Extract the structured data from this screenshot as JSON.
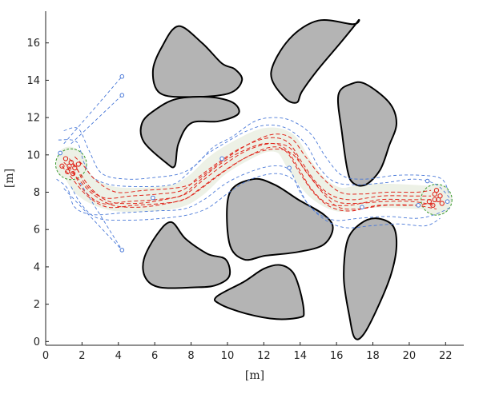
{
  "chart_data": {
    "type": "line",
    "title": "",
    "xlabel": "[m]",
    "ylabel": "[m]",
    "xlim": [
      0,
      23
    ],
    "ylim": [
      -0.2,
      17.7
    ],
    "x_ticks": [
      0,
      2,
      4,
      6,
      8,
      10,
      12,
      14,
      16,
      18,
      20,
      22
    ],
    "y_ticks": [
      0,
      2,
      4,
      6,
      8,
      10,
      12,
      14,
      16
    ],
    "grid": false,
    "legend": "none",
    "colors": {
      "obstacle_fill": "#b4b4b4",
      "obstacle_edge": "#000000",
      "corridor": "#edf1e6",
      "boundary": "#4a79d8",
      "paths": "#e0251b",
      "points": "#e0251b",
      "goal_circle": "#3a9a2f"
    },
    "obstacles": [
      [
        [
          7.3,
          16.9
        ],
        [
          8.6,
          16.0
        ],
        [
          9.7,
          14.9
        ],
        [
          10.4,
          14.6
        ],
        [
          10.8,
          14.0
        ],
        [
          10.1,
          13.3
        ],
        [
          8.0,
          13.1
        ],
        [
          6.3,
          13.3
        ],
        [
          5.9,
          14.5
        ],
        [
          6.4,
          15.8
        ]
      ],
      [
        [
          12.4,
          14.4
        ],
        [
          13.1,
          13.1
        ],
        [
          13.8,
          12.8
        ],
        [
          14.1,
          13.4
        ],
        [
          15.0,
          14.6
        ],
        [
          16.3,
          16.1
        ],
        [
          17.2,
          17.2
        ],
        [
          16.9,
          17.0
        ],
        [
          15.0,
          17.2
        ],
        [
          13.4,
          16.2
        ]
      ],
      [
        [
          7.2,
          13.0
        ],
        [
          9.0,
          13.1
        ],
        [
          10.3,
          12.8
        ],
        [
          10.6,
          12.2
        ],
        [
          9.5,
          11.8
        ],
        [
          8.0,
          11.7
        ],
        [
          7.3,
          10.6
        ],
        [
          7.1,
          9.4
        ],
        [
          6.6,
          9.6
        ],
        [
          5.4,
          10.7
        ],
        [
          5.3,
          11.7
        ],
        [
          6.0,
          12.4
        ]
      ],
      [
        [
          16.1,
          13.2
        ],
        [
          16.3,
          11.2
        ],
        [
          16.6,
          9.2
        ],
        [
          16.9,
          8.5
        ],
        [
          17.6,
          8.4
        ],
        [
          18.4,
          9.2
        ],
        [
          18.9,
          10.5
        ],
        [
          19.3,
          11.7
        ],
        [
          18.9,
          12.8
        ],
        [
          17.6,
          13.8
        ],
        [
          16.8,
          13.8
        ]
      ],
      [
        [
          10.1,
          7.9
        ],
        [
          11.4,
          8.7
        ],
        [
          12.6,
          8.4
        ],
        [
          13.9,
          7.6
        ],
        [
          15.3,
          6.8
        ],
        [
          15.8,
          6.1
        ],
        [
          15.3,
          5.2
        ],
        [
          13.9,
          4.8
        ],
        [
          12.1,
          4.6
        ],
        [
          10.9,
          4.4
        ],
        [
          10.1,
          5.3
        ]
      ],
      [
        [
          5.4,
          4.4
        ],
        [
          6.1,
          5.7
        ],
        [
          6.9,
          6.4
        ],
        [
          7.7,
          5.5
        ],
        [
          8.9,
          4.7
        ],
        [
          9.9,
          4.4
        ],
        [
          10.1,
          3.5
        ],
        [
          9.3,
          3.0
        ],
        [
          8.1,
          2.9
        ],
        [
          6.3,
          2.9
        ],
        [
          5.5,
          3.4
        ]
      ],
      [
        [
          16.4,
          3.4
        ],
        [
          16.7,
          1.4
        ],
        [
          17.0,
          0.2
        ],
        [
          17.5,
          0.4
        ],
        [
          18.3,
          1.9
        ],
        [
          19.0,
          3.6
        ],
        [
          19.3,
          5.1
        ],
        [
          19.1,
          6.2
        ],
        [
          18.2,
          6.6
        ],
        [
          17.3,
          6.3
        ],
        [
          16.6,
          5.4
        ]
      ],
      [
        [
          9.4,
          2.4
        ],
        [
          10.9,
          3.2
        ],
        [
          12.0,
          3.9
        ],
        [
          12.9,
          4.1
        ],
        [
          13.6,
          3.7
        ],
        [
          14.0,
          2.7
        ],
        [
          14.2,
          1.6
        ],
        [
          14.0,
          1.3
        ],
        [
          12.7,
          1.2
        ],
        [
          11.0,
          1.5
        ],
        [
          9.6,
          2.0
        ]
      ]
    ],
    "corridor": [
      [
        1.3,
        9.8
      ],
      [
        2.1,
        8.4
      ],
      [
        3.5,
        7.7
      ],
      [
        5.2,
        7.6
      ],
      [
        7.2,
        7.8
      ],
      [
        8.3,
        8.4
      ],
      [
        9.4,
        9.4
      ],
      [
        10.7,
        10.2
      ],
      [
        12.1,
        10.8
      ],
      [
        13.2,
        10.6
      ],
      [
        14.0,
        9.4
      ],
      [
        15.0,
        8.2
      ],
      [
        16.2,
        7.6
      ],
      [
        17.6,
        7.8
      ],
      [
        19.2,
        7.8
      ],
      [
        21.1,
        7.7
      ]
    ],
    "paths": [
      [
        [
          1.0,
          9.6
        ],
        [
          1.5,
          9.1
        ],
        [
          2.1,
          8.1
        ],
        [
          3.1,
          7.4
        ],
        [
          4.5,
          7.5
        ],
        [
          6.0,
          7.6
        ],
        [
          7.4,
          7.8
        ],
        [
          8.2,
          8.4
        ],
        [
          9.3,
          9.3
        ],
        [
          10.6,
          10.1
        ],
        [
          12.0,
          10.6
        ],
        [
          13.1,
          10.4
        ],
        [
          13.9,
          9.3
        ],
        [
          14.6,
          8.2
        ],
        [
          15.5,
          7.4
        ],
        [
          16.7,
          7.3
        ],
        [
          18.4,
          7.6
        ],
        [
          20.0,
          7.6
        ],
        [
          21.3,
          7.6
        ]
      ],
      [
        [
          1.3,
          9.8
        ],
        [
          1.7,
          9.3
        ],
        [
          2.2,
          8.4
        ],
        [
          3.2,
          7.7
        ],
        [
          4.7,
          7.8
        ],
        [
          6.2,
          7.9
        ],
        [
          7.5,
          8.1
        ],
        [
          8.4,
          8.8
        ],
        [
          9.5,
          9.6
        ],
        [
          10.8,
          10.4
        ],
        [
          12.2,
          10.9
        ],
        [
          13.3,
          10.7
        ],
        [
          14.1,
          9.6
        ],
        [
          14.9,
          8.5
        ],
        [
          15.8,
          7.8
        ],
        [
          16.9,
          7.6
        ],
        [
          18.5,
          7.8
        ],
        [
          20.1,
          7.8
        ],
        [
          21.2,
          7.8
        ]
      ],
      [
        [
          1.5,
          9.5
        ],
        [
          1.9,
          9.0
        ],
        [
          2.5,
          8.2
        ],
        [
          3.5,
          7.5
        ],
        [
          5.0,
          7.4
        ],
        [
          6.5,
          7.6
        ],
        [
          7.7,
          7.9
        ],
        [
          8.6,
          8.6
        ],
        [
          9.7,
          9.4
        ],
        [
          11.0,
          10.2
        ],
        [
          12.3,
          10.6
        ],
        [
          13.4,
          10.4
        ],
        [
          14.2,
          9.3
        ],
        [
          15.1,
          8.2
        ],
        [
          16.0,
          7.5
        ],
        [
          17.1,
          7.4
        ],
        [
          18.6,
          7.5
        ],
        [
          20.2,
          7.5
        ],
        [
          21.4,
          7.3
        ]
      ],
      [
        [
          1.2,
          9.3
        ],
        [
          1.8,
          8.7
        ],
        [
          2.6,
          7.9
        ],
        [
          3.7,
          7.3
        ],
        [
          5.2,
          7.2
        ],
        [
          6.7,
          7.4
        ],
        [
          7.8,
          7.7
        ],
        [
          8.7,
          8.3
        ],
        [
          9.8,
          9.1
        ],
        [
          11.1,
          9.9
        ],
        [
          12.4,
          10.3
        ],
        [
          13.5,
          10.1
        ],
        [
          14.4,
          9.0
        ],
        [
          15.3,
          7.9
        ],
        [
          16.1,
          7.2
        ],
        [
          17.2,
          7.1
        ],
        [
          18.7,
          7.3
        ],
        [
          20.3,
          7.3
        ],
        [
          21.5,
          7.1
        ]
      ],
      [
        [
          1.6,
          9.9
        ],
        [
          2.1,
          9.4
        ],
        [
          2.8,
          8.6
        ],
        [
          3.9,
          8.0
        ],
        [
          5.4,
          8.1
        ],
        [
          6.9,
          8.2
        ],
        [
          7.9,
          8.4
        ],
        [
          8.8,
          9.0
        ],
        [
          9.9,
          9.8
        ],
        [
          11.2,
          10.6
        ],
        [
          12.5,
          11.1
        ],
        [
          13.5,
          10.9
        ],
        [
          14.3,
          9.9
        ],
        [
          15.2,
          8.8
        ],
        [
          16.2,
          8.0
        ],
        [
          17.3,
          7.9
        ],
        [
          18.8,
          8.0
        ],
        [
          20.4,
          8.0
        ],
        [
          21.2,
          8.1
        ]
      ],
      [
        [
          0.9,
          9.4
        ],
        [
          1.4,
          8.8
        ],
        [
          2.3,
          7.8
        ],
        [
          3.4,
          7.2
        ],
        [
          4.9,
          7.3
        ],
        [
          6.4,
          7.4
        ],
        [
          7.6,
          7.6
        ],
        [
          8.5,
          8.2
        ],
        [
          9.6,
          9.0
        ],
        [
          10.9,
          9.8
        ],
        [
          12.3,
          10.4
        ],
        [
          13.2,
          10.2
        ],
        [
          14.0,
          9.0
        ],
        [
          14.8,
          7.9
        ],
        [
          15.7,
          7.2
        ],
        [
          16.8,
          7.0
        ],
        [
          18.3,
          7.3
        ],
        [
          19.9,
          7.3
        ],
        [
          21.3,
          7.4
        ]
      ]
    ],
    "boundaries": [
      [
        [
          0.7,
          10.8
        ],
        [
          1.7,
          10.7
        ],
        [
          2.1,
          9.6
        ],
        [
          2.6,
          8.8
        ],
        [
          3.6,
          8.4
        ],
        [
          5.2,
          8.3
        ],
        [
          6.9,
          8.4
        ],
        [
          7.7,
          8.9
        ],
        [
          8.7,
          9.9
        ],
        [
          9.8,
          10.6
        ],
        [
          11.1,
          11.3
        ],
        [
          12.2,
          11.6
        ],
        [
          13.3,
          11.4
        ],
        [
          14.3,
          10.6
        ],
        [
          15.0,
          9.4
        ],
        [
          15.8,
          8.6
        ],
        [
          16.9,
          8.4
        ],
        [
          18.6,
          8.5
        ],
        [
          20.3,
          8.7
        ],
        [
          21.5,
          8.4
        ],
        [
          22.3,
          7.6
        ]
      ],
      [
        [
          0.6,
          8.7
        ],
        [
          1.2,
          8.2
        ],
        [
          1.6,
          7.2
        ],
        [
          2.6,
          6.8
        ],
        [
          4.3,
          6.9
        ],
        [
          6.1,
          7.0
        ],
        [
          7.6,
          7.1
        ],
        [
          8.7,
          7.6
        ],
        [
          9.8,
          8.4
        ],
        [
          11.0,
          9.0
        ],
        [
          12.4,
          9.4
        ],
        [
          13.4,
          9.2
        ],
        [
          14.0,
          8.0
        ],
        [
          14.8,
          7.0
        ],
        [
          15.9,
          6.5
        ],
        [
          17.2,
          6.6
        ],
        [
          18.8,
          6.7
        ],
        [
          20.4,
          6.6
        ],
        [
          21.4,
          6.8
        ],
        [
          22.3,
          7.2
        ]
      ],
      [
        [
          1.0,
          11.3
        ],
        [
          1.8,
          11.4
        ],
        [
          2.4,
          10.2
        ],
        [
          3.1,
          9.0
        ],
        [
          4.5,
          8.7
        ],
        [
          6.1,
          8.8
        ],
        [
          7.4,
          9.0
        ],
        [
          8.3,
          9.5
        ],
        [
          9.2,
          10.4
        ],
        [
          10.3,
          11.0
        ],
        [
          11.5,
          11.8
        ],
        [
          12.6,
          12.0
        ],
        [
          13.6,
          11.8
        ],
        [
          14.6,
          11.1
        ],
        [
          15.4,
          9.9
        ],
        [
          16.3,
          8.9
        ],
        [
          17.5,
          8.7
        ],
        [
          19.2,
          8.9
        ],
        [
          20.8,
          8.9
        ],
        [
          21.8,
          8.7
        ],
        [
          22.2,
          7.9
        ]
      ],
      [
        [
          1.4,
          8.3
        ],
        [
          2.0,
          7.3
        ],
        [
          2.9,
          6.6
        ],
        [
          4.6,
          6.5
        ],
        [
          6.4,
          6.6
        ],
        [
          7.9,
          6.8
        ],
        [
          9.0,
          7.2
        ],
        [
          10.1,
          8.0
        ],
        [
          11.3,
          8.7
        ],
        [
          12.7,
          9.0
        ],
        [
          13.7,
          8.6
        ],
        [
          14.4,
          7.4
        ],
        [
          15.4,
          6.5
        ],
        [
          16.5,
          6.1
        ],
        [
          17.9,
          6.2
        ],
        [
          19.4,
          6.3
        ],
        [
          20.9,
          6.2
        ],
        [
          21.7,
          6.6
        ]
      ]
    ],
    "start_lines": [
      [
        [
          1.0,
          10.6
        ],
        [
          4.2,
          14.2
        ]
      ],
      [
        [
          1.4,
          10.6
        ],
        [
          4.2,
          13.2
        ]
      ],
      [
        [
          1.0,
          8.2
        ],
        [
          4.2,
          4.9
        ]
      ],
      [
        [
          1.9,
          8.5
        ],
        [
          4.2,
          4.9
        ]
      ]
    ],
    "blue_markers": [
      [
        4.2,
        14.2
      ],
      [
        4.2,
        13.2
      ],
      [
        4.2,
        4.9
      ],
      [
        0.8,
        10.1
      ],
      [
        21.0,
        8.6
      ],
      [
        22.1,
        7.5
      ],
      [
        20.5,
        7.3
      ],
      [
        13.4,
        9.3
      ],
      [
        9.7,
        9.8
      ],
      [
        5.9,
        7.7
      ],
      [
        17.4,
        7.2
      ]
    ],
    "start_points": [
      [
        1.1,
        9.8
      ],
      [
        1.4,
        9.6
      ],
      [
        0.9,
        9.4
      ],
      [
        1.6,
        9.3
      ],
      [
        1.2,
        9.1
      ],
      [
        1.5,
        9.0
      ],
      [
        1.8,
        9.5
      ],
      [
        1.3,
        9.4
      ]
    ],
    "goal_points": [
      [
        21.4,
        7.9
      ],
      [
        21.6,
        7.6
      ],
      [
        21.3,
        7.3
      ],
      [
        21.7,
        7.8
      ],
      [
        21.5,
        8.1
      ],
      [
        21.1,
        7.5
      ],
      [
        21.8,
        7.4
      ],
      [
        21.4,
        7.6
      ]
    ],
    "start_region": {
      "center": [
        1.4,
        9.5
      ],
      "radius": 0.85
    },
    "goal_region": {
      "center": [
        21.5,
        7.6
      ],
      "radius": 0.85
    }
  }
}
